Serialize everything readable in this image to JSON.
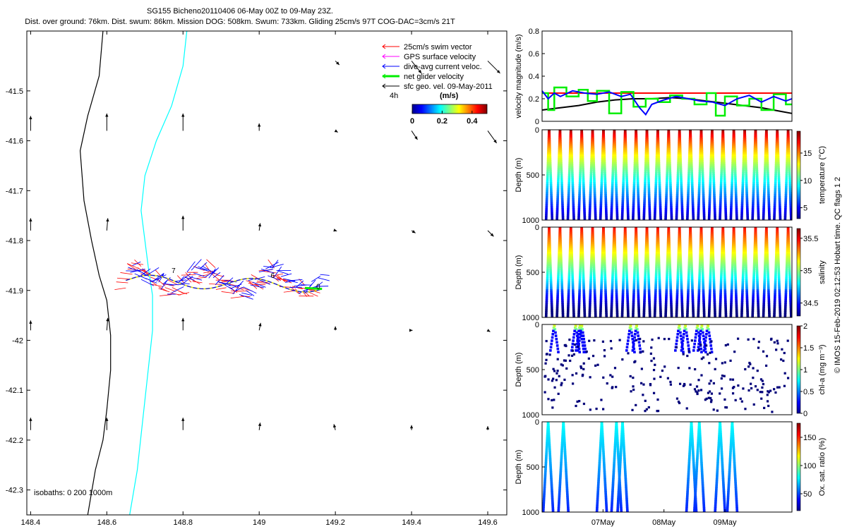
{
  "header": {
    "title_line1": "SG155 Bicheno20110406 06-May 00Z to 09-May 23Z.",
    "title_line2": "Dist. over ground: 76km. Dist. swum: 86km. Mission DOG: 508km. Swum: 733km. Gliding 25cm/s 97T COG-DAC=3cm/s 21T"
  },
  "side_note": "© IMOS 15-Feb-2019 02:12:53 Hobart time. QC flags 1 2",
  "colors": {
    "swim": "#ff0000",
    "gps": "#ff00ff",
    "dac": "#0000ff",
    "net": "#00ee00",
    "geo": "#000000",
    "iso0": "#000000",
    "iso200": "#00ffff"
  },
  "chart_data": [
    {
      "type": "map",
      "x_ticks": [
        "148.4",
        "148.6",
        "148.8",
        "149",
        "149.2",
        "149.4",
        "149.6"
      ],
      "y_ticks": [
        "-41.5",
        "-41.6",
        "-41.7",
        "-41.8",
        "-41.9",
        "-42",
        "-42.1",
        "-42.2",
        "-42.3"
      ],
      "xlim": [
        148.39,
        149.65
      ],
      "ylim": [
        -42.35,
        -41.38
      ],
      "legend": [
        {
          "label": "25cm/s swim vector",
          "color": "#ff0000"
        },
        {
          "label": "GPS surface velocity",
          "color": "#ff00ff"
        },
        {
          "label": "dive-avg current veloc.",
          "color": "#0000ff"
        },
        {
          "label": "net glider velocity",
          "color": "#00ee00"
        },
        {
          "label": "sfc geo. vel. 09-May-2011",
          "color": "#000000"
        }
      ],
      "colorbar": {
        "unit": "(m/s)",
        "ticks": [
          "0",
          "0.2",
          "0.4"
        ],
        "range": [
          0,
          0.5
        ],
        "note": "4h"
      },
      "isobath_note": "isobaths: 0   200  1000m",
      "track_labels": [
        {
          "text": "7",
          "lon": 148.77,
          "lat": -41.865
        },
        {
          "text": "6",
          "lon": 149.03,
          "lat": -41.875
        },
        {
          "text": "0",
          "lon": 149.15,
          "lat": -41.897
        }
      ],
      "track": {
        "lon_range": [
          148.65,
          149.16
        ],
        "lat_center": -41.88
      },
      "geo_vectors": [
        {
          "lon": 148.4,
          "lat": -41.58,
          "u": 0.0,
          "v": 0.3
        },
        {
          "lon": 148.6,
          "lat": -41.58,
          "u": 0.0,
          "v": 0.35
        },
        {
          "lon": 148.8,
          "lat": -41.58,
          "u": 0.0,
          "v": 0.35
        },
        {
          "lon": 149.0,
          "lat": -41.58,
          "u": 0.0,
          "v": 0.15
        },
        {
          "lon": 149.2,
          "lat": -41.58,
          "u": 0.05,
          "v": -0.03
        },
        {
          "lon": 149.4,
          "lat": -41.58,
          "u": 0.12,
          "v": -0.18
        },
        {
          "lon": 149.6,
          "lat": -41.58,
          "u": 0.18,
          "v": -0.25
        },
        {
          "lon": 149.4,
          "lat": -41.44,
          "u": 0.2,
          "v": -0.25
        },
        {
          "lon": 149.6,
          "lat": -41.44,
          "u": 0.25,
          "v": -0.25
        },
        {
          "lon": 149.2,
          "lat": -41.44,
          "u": 0.08,
          "v": -0.08
        },
        {
          "lon": 148.4,
          "lat": -41.78,
          "u": 0.0,
          "v": 0.25
        },
        {
          "lon": 148.6,
          "lat": -41.78,
          "u": 0.02,
          "v": 0.25
        },
        {
          "lon": 148.8,
          "lat": -41.78,
          "u": 0.0,
          "v": 0.3
        },
        {
          "lon": 149.0,
          "lat": -41.78,
          "u": 0.02,
          "v": 0.15
        },
        {
          "lon": 149.2,
          "lat": -41.78,
          "u": 0.03,
          "v": -0.01
        },
        {
          "lon": 149.4,
          "lat": -41.78,
          "u": 0.08,
          "v": -0.05
        },
        {
          "lon": 149.6,
          "lat": -41.78,
          "u": 0.12,
          "v": -0.12
        },
        {
          "lon": 148.4,
          "lat": -41.98,
          "u": 0.0,
          "v": 0.2
        },
        {
          "lon": 148.6,
          "lat": -41.98,
          "u": 0.02,
          "v": 0.25
        },
        {
          "lon": 148.8,
          "lat": -41.98,
          "u": 0.0,
          "v": 0.25
        },
        {
          "lon": 149.0,
          "lat": -41.98,
          "u": 0.03,
          "v": 0.15
        },
        {
          "lon": 149.2,
          "lat": -41.98,
          "u": 0.0,
          "v": 0.08
        },
        {
          "lon": 149.4,
          "lat": -41.98,
          "u": 0.02,
          "v": 0.0
        },
        {
          "lon": 149.6,
          "lat": -41.98,
          "u": 0.05,
          "v": -0.03
        },
        {
          "lon": 148.4,
          "lat": -42.18,
          "u": 0.0,
          "v": 0.25
        },
        {
          "lon": 148.6,
          "lat": -42.18,
          "u": 0.0,
          "v": 0.25
        },
        {
          "lon": 148.8,
          "lat": -42.18,
          "u": 0.0,
          "v": 0.25
        },
        {
          "lon": 149.0,
          "lat": -42.18,
          "u": 0.02,
          "v": 0.15
        },
        {
          "lon": 149.2,
          "lat": -42.18,
          "u": -0.03,
          "v": 0.12
        },
        {
          "lon": 149.4,
          "lat": -42.18,
          "u": 0.0,
          "v": 0.1
        },
        {
          "lon": 149.6,
          "lat": -42.18,
          "u": 0.0,
          "v": 0.08
        }
      ],
      "isobath_0": [
        [
          148.59,
          -41.38
        ],
        [
          148.58,
          -41.47
        ],
        [
          148.55,
          -41.55
        ],
        [
          148.53,
          -41.62
        ],
        [
          148.54,
          -41.72
        ],
        [
          148.56,
          -41.8
        ],
        [
          148.58,
          -41.87
        ],
        [
          148.6,
          -41.92
        ],
        [
          148.61,
          -41.99
        ],
        [
          148.61,
          -42.06
        ],
        [
          148.6,
          -42.14
        ],
        [
          148.59,
          -42.2
        ],
        [
          148.57,
          -42.26
        ],
        [
          148.55,
          -42.35
        ]
      ],
      "isobath_200": [
        [
          148.81,
          -41.38
        ],
        [
          148.8,
          -41.45
        ],
        [
          148.77,
          -41.53
        ],
        [
          148.73,
          -41.6
        ],
        [
          148.7,
          -41.67
        ],
        [
          148.69,
          -41.74
        ],
        [
          148.7,
          -41.8
        ],
        [
          148.71,
          -41.86
        ],
        [
          148.72,
          -41.91
        ],
        [
          148.72,
          -41.98
        ],
        [
          148.71,
          -42.05
        ],
        [
          148.7,
          -42.12
        ],
        [
          148.69,
          -42.19
        ],
        [
          148.68,
          -42.26
        ],
        [
          148.66,
          -42.35
        ]
      ]
    },
    {
      "type": "line",
      "ylabel": "velocity magnitude (m/s)",
      "ylim": [
        0,
        0.8
      ],
      "y_ticks": [
        "0",
        "0.2",
        "0.4",
        "0.6",
        "0.8"
      ],
      "xlim": [
        0,
        4.1
      ],
      "series": [
        {
          "name": "swim",
          "color": "#ff0000",
          "x": [
            0,
            4.1
          ],
          "y": [
            0.25,
            0.25
          ]
        },
        {
          "name": "geostrophic",
          "color": "#000000",
          "x": [
            0,
            0.3,
            0.6,
            0.9,
            1.2,
            1.5,
            1.8,
            2.1,
            2.4,
            2.7,
            3.0,
            3.3,
            3.6,
            3.9,
            4.1
          ],
          "y": [
            0.1,
            0.12,
            0.14,
            0.17,
            0.19,
            0.2,
            0.2,
            0.21,
            0.2,
            0.18,
            0.16,
            0.14,
            0.12,
            0.09,
            0.07
          ]
        },
        {
          "name": "net",
          "color": "#00ee00",
          "x": [
            0,
            0.1,
            0.1,
            0.2,
            0.2,
            0.4,
            0.4,
            0.6,
            0.6,
            0.75,
            0.75,
            0.9,
            0.9,
            1.1,
            1.1,
            1.3,
            1.3,
            1.5,
            1.5,
            1.7,
            1.7,
            1.9,
            1.9,
            2.1,
            2.1,
            2.3,
            2.3,
            2.5,
            2.5,
            2.7,
            2.7,
            2.85,
            2.85,
            3.0,
            3.0,
            3.2,
            3.2,
            3.4,
            3.4,
            3.6,
            3.6,
            3.8,
            3.8,
            4.0,
            4.0,
            4.1
          ],
          "y": [
            0.25,
            0.25,
            0.1,
            0.1,
            0.3,
            0.3,
            0.22,
            0.22,
            0.28,
            0.28,
            0.18,
            0.18,
            0.27,
            0.27,
            0.07,
            0.07,
            0.26,
            0.26,
            0.13,
            0.13,
            0.2,
            0.2,
            0.17,
            0.17,
            0.23,
            0.23,
            0.2,
            0.2,
            0.15,
            0.15,
            0.25,
            0.25,
            0.05,
            0.05,
            0.22,
            0.22,
            0.14,
            0.14,
            0.2,
            0.2,
            0.1,
            0.1,
            0.24,
            0.24,
            0.15,
            0.15
          ]
        },
        {
          "name": "dac",
          "color": "#0000ff",
          "x": [
            0,
            0.1,
            0.2,
            0.3,
            0.5,
            0.7,
            0.9,
            1.1,
            1.3,
            1.45,
            1.6,
            1.7,
            1.8,
            2.0,
            2.2,
            2.4,
            2.6,
            2.8,
            3.0,
            3.2,
            3.4,
            3.6,
            3.8,
            4.0,
            4.1
          ],
          "y": [
            0.27,
            0.2,
            0.25,
            0.22,
            0.27,
            0.25,
            0.24,
            0.26,
            0.22,
            0.24,
            0.12,
            0.06,
            0.15,
            0.19,
            0.22,
            0.2,
            0.18,
            0.17,
            0.14,
            0.2,
            0.23,
            0.17,
            0.22,
            0.18,
            0.2
          ]
        }
      ]
    },
    {
      "type": "scatter",
      "ylabel": "Depth (m)",
      "cbar_label": "temperature (°C)",
      "cbar_ticks": [
        "5",
        "10",
        "15"
      ],
      "cbar_range": [
        3,
        19
      ],
      "y_ticks": [
        "0",
        "500",
        "1000"
      ],
      "ylim": [
        0,
        1000
      ],
      "dives": 23
    },
    {
      "type": "scatter",
      "ylabel": "Depth (m)",
      "cbar_label": "salinity",
      "cbar_ticks": [
        "34.5",
        "35",
        "35.5"
      ],
      "cbar_range": [
        34.3,
        35.65
      ],
      "y_ticks": [
        "0",
        "500",
        "1000"
      ],
      "ylim": [
        0,
        1000
      ],
      "dives": 23
    },
    {
      "type": "scatter",
      "ylabel": "Depth (m)",
      "cbar_label": "chl-a (mg m⁻³)",
      "cbar_ticks": [
        "0",
        "0.5",
        "1",
        "1.5",
        "2"
      ],
      "cbar_range": [
        0,
        2
      ],
      "y_ticks": [
        "0",
        "500",
        "1000"
      ],
      "ylim": [
        0,
        1000
      ]
    },
    {
      "type": "scatter",
      "ylabel": "Depth (m)",
      "cbar_label": "Ox. sat. ratio (%)",
      "cbar_ticks": [
        "50",
        "100",
        "150"
      ],
      "cbar_range": [
        20,
        175
      ],
      "y_ticks": [
        "0",
        "500",
        "1000"
      ],
      "ylim": [
        0,
        1000
      ],
      "x_ticks": [
        "07May",
        "08May",
        "09May"
      ],
      "x_tick_pos": [
        1,
        2,
        3
      ],
      "xlim": [
        0,
        4.1
      ]
    }
  ]
}
